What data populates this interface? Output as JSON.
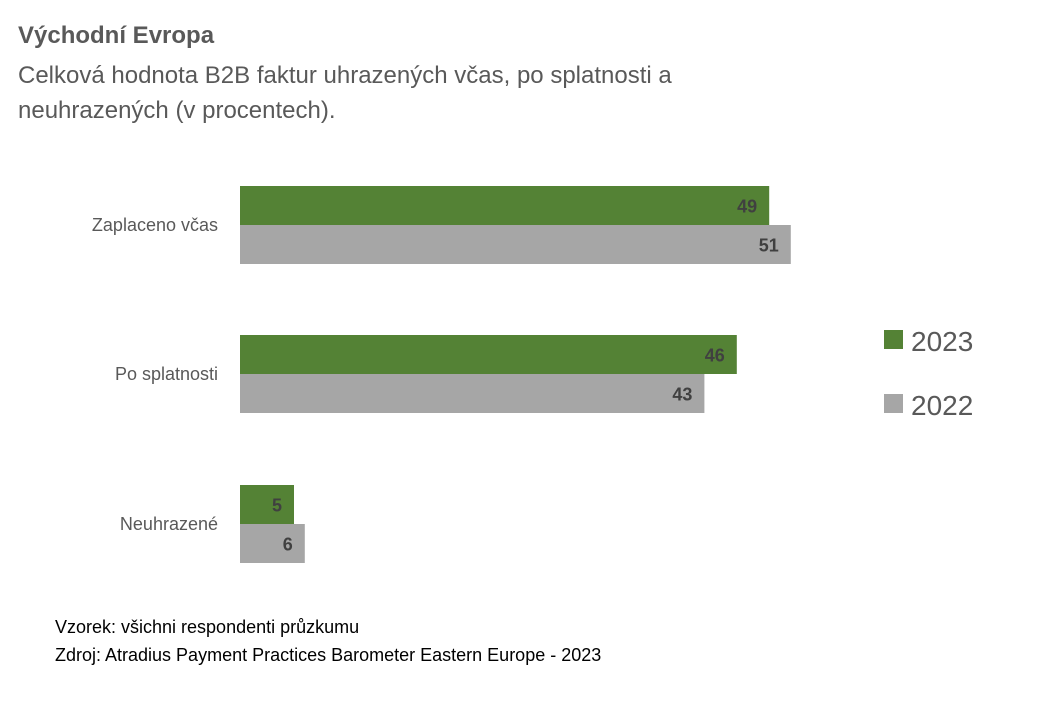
{
  "header": {
    "title": "Východní Evropa",
    "subtitle": "Celková hodnota B2B faktur uhrazených včas, po splatnosti a neuhrazených (v procentech)."
  },
  "chart_data": {
    "type": "bar",
    "orientation": "horizontal",
    "categories": [
      "Zaplaceno včas",
      "Po splatnosti",
      "Neuhrazené"
    ],
    "series": [
      {
        "name": "2023",
        "values": [
          49,
          46,
          5
        ],
        "color": "#548235"
      },
      {
        "name": "2022",
        "values": [
          51,
          43,
          6
        ],
        "color": "#A6A6A6"
      }
    ],
    "xlim": [
      0,
      100
    ],
    "grid": false,
    "legend_position": "right"
  },
  "footer": {
    "sample": "Vzorek: všichni respondenti průzkumu",
    "source": "Zdroj: Atradius Payment Practices Barometer Eastern Europe - 2023"
  }
}
